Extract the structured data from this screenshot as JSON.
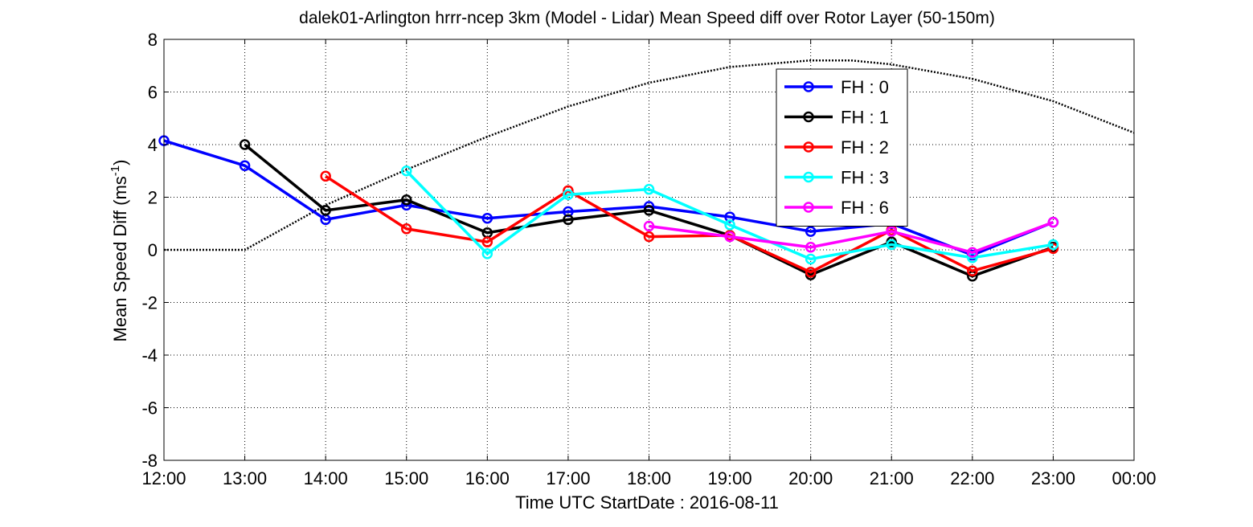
{
  "chart_data": {
    "type": "line",
    "title": "dalek01-Arlington hrrr-ncep 3km (Model - Lidar) Mean Speed diff over Rotor Layer (50-150m)",
    "xlabel": "Time UTC    StartDate : 2016-08-11",
    "ylabel_main": "Mean Speed Diff (ms",
    "ylabel_sup": "-1",
    "ylabel_close": ")",
    "xticks": [
      "12:00",
      "13:00",
      "14:00",
      "15:00",
      "16:00",
      "17:00",
      "18:00",
      "19:00",
      "20:00",
      "21:00",
      "22:00",
      "23:00",
      "00:00"
    ],
    "yticks": [
      "8",
      "6",
      "4",
      "2",
      "0",
      "-2",
      "-4",
      "-6",
      "-8"
    ],
    "ylim": [
      -8,
      8
    ],
    "xlim": [
      12,
      24
    ],
    "grid": true,
    "legend_position": "top-right",
    "series": [
      {
        "name": "FH : 0",
        "color": "#0000ff",
        "x": [
          12,
          13,
          14,
          15,
          16,
          17,
          18,
          19,
          20,
          21,
          22,
          23
        ],
        "values": [
          4.15,
          3.2,
          1.15,
          1.7,
          1.2,
          1.45,
          1.65,
          1.25,
          0.7,
          1.0,
          -0.2,
          1.05
        ]
      },
      {
        "name": "FH : 1",
        "color": "#000000",
        "x": [
          13,
          14,
          15,
          16,
          17,
          18,
          19,
          20,
          21,
          22,
          23
        ],
        "values": [
          4.0,
          1.5,
          1.9,
          0.65,
          1.15,
          1.5,
          0.55,
          -0.95,
          0.3,
          -1.0,
          0.1
        ]
      },
      {
        "name": "FH : 2",
        "color": "#ff0000",
        "x": [
          14,
          15,
          16,
          17,
          18,
          19,
          20,
          21,
          22,
          23
        ],
        "values": [
          2.8,
          0.8,
          0.3,
          2.25,
          0.5,
          0.55,
          -0.85,
          0.75,
          -0.8,
          0.05
        ]
      },
      {
        "name": "FH : 3",
        "color": "#00ffff",
        "x": [
          15,
          16,
          17,
          18,
          19,
          20,
          21,
          22,
          23
        ],
        "values": [
          3.0,
          -0.15,
          2.1,
          2.3,
          0.95,
          -0.35,
          0.2,
          -0.3,
          0.2
        ]
      },
      {
        "name": "FH : 6",
        "color": "#ff00ff",
        "x": [
          18,
          19,
          20,
          21,
          22,
          23
        ],
        "values": [
          0.9,
          0.5,
          0.1,
          0.7,
          -0.1,
          1.05
        ]
      }
    ],
    "reference_curve": {
      "style": "dotted",
      "color": "#000000",
      "x": [
        12,
        13,
        14,
        15,
        16,
        17,
        18,
        19,
        20,
        20.5,
        21,
        22,
        23,
        24
      ],
      "values": [
        0,
        0,
        1.7,
        3.05,
        4.3,
        5.45,
        6.35,
        6.95,
        7.2,
        7.2,
        7.05,
        6.5,
        5.65,
        4.45
      ]
    }
  }
}
